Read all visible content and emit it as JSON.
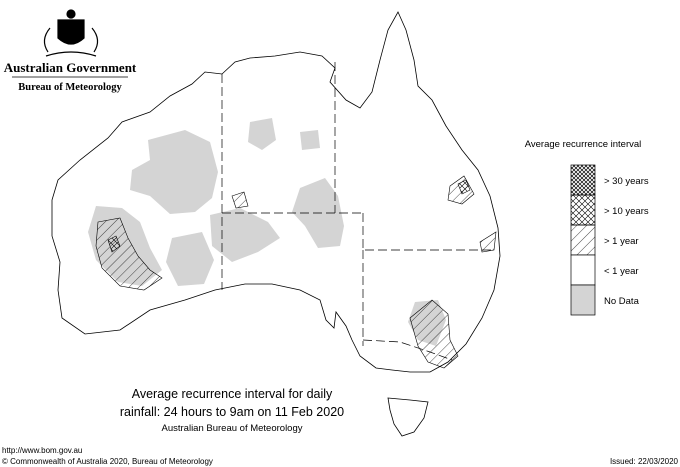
{
  "header": {
    "government": "Australian Government",
    "bureau": "Bureau of Meteorology"
  },
  "legend": {
    "title": "Average recurrence interval",
    "items": [
      "> 30 years",
      "> 10 years",
      "> 1 year",
      "< 1 year",
      "No Data"
    ]
  },
  "caption": {
    "line1": "Average recurrence interval for daily",
    "line2": "rainfall: 24 hours to 9am on 11 Feb 2020",
    "line3": "Australian Bureau of Meteorology"
  },
  "footer": {
    "url": "http://www.bom.gov.au",
    "copyright": "© Commonwealth of Australia 2020, Bureau of Meteorology",
    "issued": "Issued: 22/03/2020"
  }
}
